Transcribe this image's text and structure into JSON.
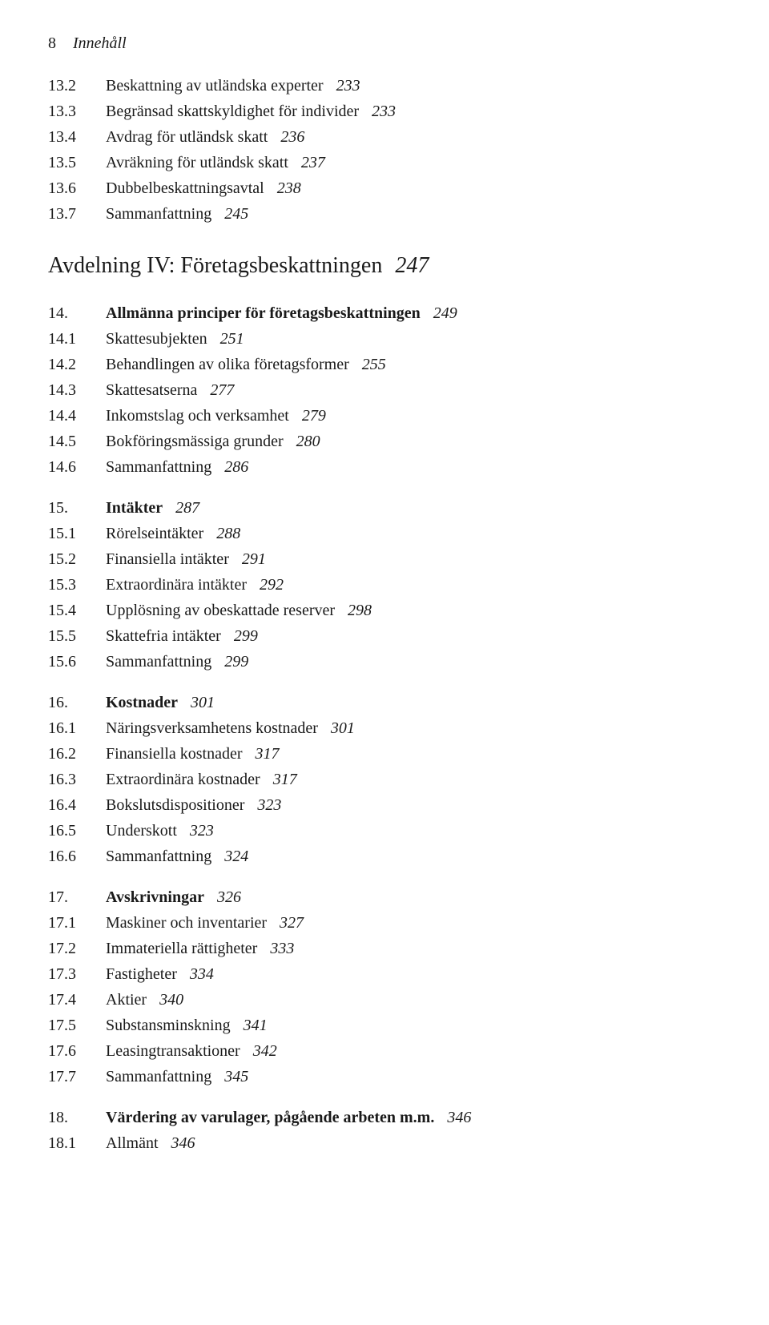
{
  "header": {
    "page_number": "8",
    "header_title": "Innehåll"
  },
  "sections": [
    {
      "entries": [
        {
          "num": "13.2",
          "text": "Beskattning av utländska experter",
          "page": "233"
        },
        {
          "num": "13.3",
          "text": "Begränsad skattskyldighet för individer",
          "page": "233"
        },
        {
          "num": "13.4",
          "text": "Avdrag för utländsk skatt",
          "page": "236"
        },
        {
          "num": "13.5",
          "text": "Avräkning för utländsk skatt",
          "page": "237"
        },
        {
          "num": "13.6",
          "text": "Dubbelbeskattningsavtal",
          "page": "238"
        },
        {
          "num": "13.7",
          "text": "Sammanfattning",
          "page": "245"
        }
      ]
    }
  ],
  "division": {
    "title": "Avdelning IV: Företagsbeskattningen",
    "page": "247"
  },
  "sections_after": [
    {
      "entries": [
        {
          "num": "14.",
          "text": "Allmänna principer för företagsbeskattningen",
          "page": "249",
          "bold": true
        },
        {
          "num": "14.1",
          "text": "Skattesubjekten",
          "page": "251"
        },
        {
          "num": "14.2",
          "text": "Behandlingen av olika företagsformer",
          "page": "255"
        },
        {
          "num": "14.3",
          "text": "Skattesatserna",
          "page": "277"
        },
        {
          "num": "14.4",
          "text": "Inkomstslag och verksamhet",
          "page": "279"
        },
        {
          "num": "14.5",
          "text": "Bokföringsmässiga grunder",
          "page": "280"
        },
        {
          "num": "14.6",
          "text": "Sammanfattning",
          "page": "286"
        }
      ]
    },
    {
      "entries": [
        {
          "num": "15.",
          "text": "Intäkter",
          "page": "287",
          "bold": true
        },
        {
          "num": "15.1",
          "text": "Rörelseintäkter",
          "page": "288"
        },
        {
          "num": "15.2",
          "text": "Finansiella intäkter",
          "page": "291"
        },
        {
          "num": "15.3",
          "text": "Extraordinära intäkter",
          "page": "292"
        },
        {
          "num": "15.4",
          "text": "Upplösning av obeskattade reserver",
          "page": "298"
        },
        {
          "num": "15.5",
          "text": "Skattefria intäkter",
          "page": "299"
        },
        {
          "num": "15.6",
          "text": "Sammanfattning",
          "page": "299"
        }
      ]
    },
    {
      "entries": [
        {
          "num": "16.",
          "text": "Kostnader",
          "page": "301",
          "bold": true
        },
        {
          "num": "16.1",
          "text": "Näringsverksamhetens kostnader",
          "page": "301"
        },
        {
          "num": "16.2",
          "text": "Finansiella kostnader",
          "page": "317"
        },
        {
          "num": "16.3",
          "text": "Extraordinära kostnader",
          "page": "317"
        },
        {
          "num": "16.4",
          "text": "Bokslutsdispositioner",
          "page": "323"
        },
        {
          "num": "16.5",
          "text": "Underskott",
          "page": "323"
        },
        {
          "num": "16.6",
          "text": "Sammanfattning",
          "page": "324"
        }
      ]
    },
    {
      "entries": [
        {
          "num": "17.",
          "text": "Avskrivningar",
          "page": "326",
          "bold": true
        },
        {
          "num": "17.1",
          "text": "Maskiner och inventarier",
          "page": "327"
        },
        {
          "num": "17.2",
          "text": "Immateriella rättigheter",
          "page": "333"
        },
        {
          "num": "17.3",
          "text": "Fastigheter",
          "page": "334"
        },
        {
          "num": "17.4",
          "text": "Aktier",
          "page": "340"
        },
        {
          "num": "17.5",
          "text": "Substansminskning",
          "page": "341"
        },
        {
          "num": "17.6",
          "text": "Leasingtransaktioner",
          "page": "342"
        },
        {
          "num": "17.7",
          "text": "Sammanfattning",
          "page": "345"
        }
      ]
    },
    {
      "entries": [
        {
          "num": "18.",
          "text": "Värdering av varulager, pågående arbeten m.m.",
          "page": "346",
          "bold": true
        },
        {
          "num": "18.1",
          "text": "Allmänt",
          "page": "346"
        }
      ]
    }
  ]
}
